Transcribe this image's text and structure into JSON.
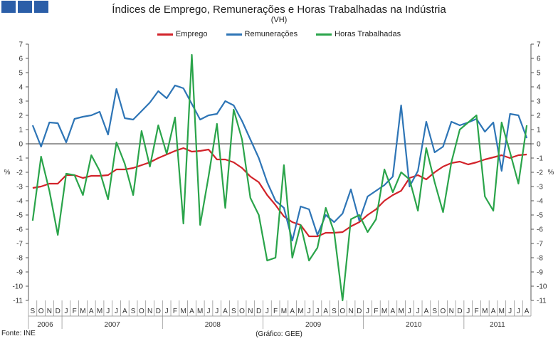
{
  "logo_icon": "ine-logo-squares",
  "footer": {
    "source": "Fonte: INE",
    "note": "(Gráfico: GEE)"
  },
  "chart_data": {
    "type": "line",
    "title": "Índices de Emprego, Remunerações e Horas Trabalhadas na Indústria",
    "subtitle": "(VH)",
    "ylabel_left": "%",
    "ylabel_right": "%",
    "ylim": [
      -11,
      7
    ],
    "yticks": [
      7,
      6,
      5,
      4,
      3,
      2,
      1,
      0,
      -1,
      -2,
      -3,
      -4,
      -5,
      -6,
      -7,
      -8,
      -9,
      -10,
      -11
    ],
    "legend_position": "top-center",
    "grid": false,
    "x_months": [
      "S",
      "O",
      "N",
      "D",
      "J",
      "F",
      "M",
      "A",
      "M",
      "J",
      "J",
      "A",
      "S",
      "O",
      "N",
      "D",
      "J",
      "F",
      "M",
      "A",
      "M",
      "J",
      "J",
      "A",
      "S",
      "O",
      "N",
      "D",
      "J",
      "F",
      "M",
      "A",
      "M",
      "J",
      "J",
      "A",
      "S",
      "O",
      "N",
      "D",
      "J",
      "F",
      "M",
      "A",
      "M",
      "J",
      "J",
      "A",
      "S",
      "O",
      "N",
      "D",
      "J",
      "F",
      "M",
      "A",
      "M",
      "J",
      "J",
      "A"
    ],
    "years": [
      {
        "label": "2006",
        "start": 0,
        "end": 4
      },
      {
        "label": "2007",
        "start": 4,
        "end": 16
      },
      {
        "label": "2008",
        "start": 16,
        "end": 28
      },
      {
        "label": "2009",
        "start": 28,
        "end": 40
      },
      {
        "label": "2010",
        "start": 40,
        "end": 52
      },
      {
        "label": "2011",
        "start": 52,
        "end": 60
      }
    ],
    "series": [
      {
        "name": "Emprego",
        "color": "#d2232a",
        "values": [
          -3.1,
          -3.0,
          -2.8,
          -2.8,
          -2.2,
          -2.2,
          -2.4,
          -2.25,
          -2.25,
          -2.2,
          -1.8,
          -1.8,
          -1.7,
          -1.5,
          -1.3,
          -1.0,
          -0.75,
          -0.5,
          -0.3,
          -0.55,
          -0.5,
          -0.4,
          -1.1,
          -1.1,
          -1.3,
          -1.7,
          -2.3,
          -2.7,
          -3.6,
          -4.3,
          -5.1,
          -5.5,
          -5.7,
          -6.5,
          -6.5,
          -6.25,
          -6.25,
          -6.2,
          -5.8,
          -5.5,
          -5.0,
          -4.6,
          -4.0,
          -3.6,
          -3.3,
          -2.4,
          -2.2,
          -2.5,
          -2.0,
          -1.6,
          -1.35,
          -1.25,
          -1.45,
          -1.3,
          -1.1,
          -0.95,
          -0.8,
          -1.0,
          -0.8,
          -0.75
        ]
      },
      {
        "name": "Remunerações",
        "color": "#2e75b6",
        "values": [
          1.3,
          -0.2,
          1.5,
          1.45,
          0.1,
          1.75,
          1.9,
          2.0,
          2.25,
          0.65,
          3.85,
          1.8,
          1.7,
          2.3,
          2.9,
          3.7,
          3.2,
          4.1,
          3.9,
          2.8,
          1.7,
          2.0,
          2.1,
          3.0,
          2.7,
          1.6,
          0.3,
          -1.0,
          -2.7,
          -4.0,
          -4.5,
          -6.8,
          -4.4,
          -4.6,
          -6.4,
          -5.0,
          -5.5,
          -4.9,
          -3.2,
          -5.4,
          -3.7,
          -3.3,
          -2.9,
          -2.3,
          2.7,
          -3.0,
          -1.9,
          1.55,
          -0.6,
          -0.2,
          1.55,
          1.3,
          1.5,
          1.75,
          0.85,
          1.5,
          -1.9,
          2.1,
          2.0,
          0.4
        ]
      },
      {
        "name": "Horas Trabalhadas",
        "color": "#2aa44a",
        "values": [
          -5.4,
          -0.9,
          -3.3,
          -6.4,
          -2.1,
          -2.2,
          -3.6,
          -0.8,
          -1.9,
          -3.9,
          0.1,
          -1.4,
          -3.6,
          0.9,
          -1.6,
          1.3,
          -0.7,
          1.85,
          -5.6,
          6.25,
          -5.7,
          -2.3,
          1.4,
          -4.5,
          2.4,
          0.3,
          -3.8,
          -5.0,
          -8.2,
          -8.0,
          -1.5,
          -8.0,
          -5.7,
          -8.2,
          -7.3,
          -4.5,
          -6.2,
          -11.0,
          -5.3,
          -5.0,
          -6.2,
          -5.3,
          -1.8,
          -3.4,
          -2.0,
          -2.5,
          -4.7,
          -0.3,
          -2.7,
          -4.8,
          -1.3,
          1.0,
          1.5,
          2.0,
          -3.7,
          -4.7,
          1.5,
          -0.6,
          -2.8,
          1.3
        ]
      }
    ]
  }
}
